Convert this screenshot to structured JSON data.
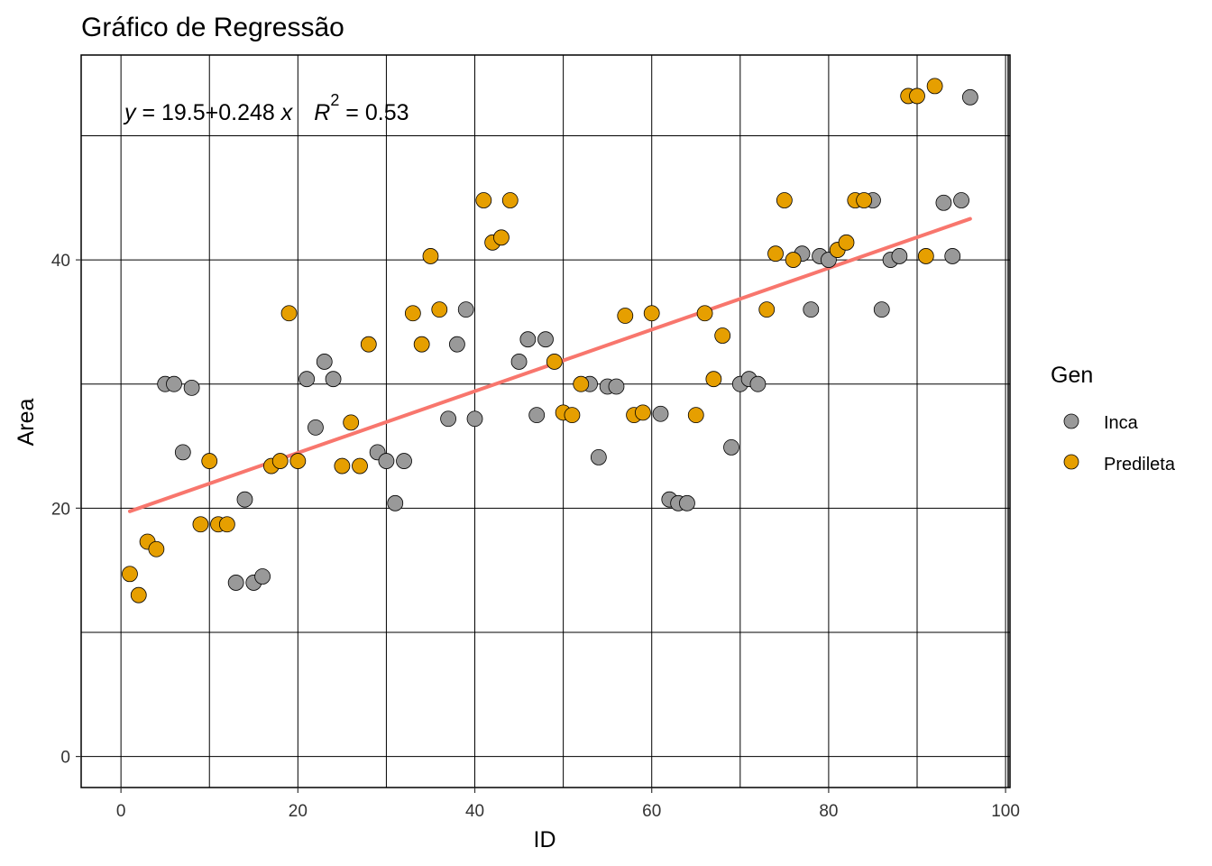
{
  "chart_data": {
    "type": "scatter",
    "title": "Gráfico de Regressão",
    "xlabel": "ID",
    "ylabel": "Area",
    "xlim": [
      -4.5,
      100.5
    ],
    "ylim": [
      -2.5,
      56.5
    ],
    "x_ticks": [
      0,
      20,
      40,
      60,
      80,
      100
    ],
    "y_ticks": [
      0,
      20,
      40
    ],
    "x_tick_labels": [
      "0",
      "20",
      "40",
      "60",
      "80",
      "100"
    ],
    "y_tick_labels": [
      "0",
      "20",
      "40"
    ],
    "grid": true,
    "legend": {
      "title": "Gen",
      "position": "right",
      "entries": [
        {
          "label": "Inca",
          "color": "#999999"
        },
        {
          "label": "Predileta",
          "color": "#E69F00"
        }
      ]
    },
    "regression": {
      "intercept": 19.5,
      "slope": 0.248,
      "x_range": [
        1,
        96
      ],
      "color": "#F8766D",
      "equation": {
        "y": "y",
        "eq1": " = 19.5",
        "plus": "+",
        "coef": "0.248 ",
        "x": "x",
        "R": "R",
        "sup": "2",
        "eq2": " = 0.53"
      }
    },
    "series": [
      {
        "name": "Inca",
        "color": "#999999",
        "points": [
          [
            5,
            30
          ],
          [
            6,
            30
          ],
          [
            7,
            24.5
          ],
          [
            8,
            29.7
          ],
          [
            13,
            14
          ],
          [
            14,
            20.7
          ],
          [
            15,
            14
          ],
          [
            16,
            14.5
          ],
          [
            21,
            30.4
          ],
          [
            22,
            26.5
          ],
          [
            23,
            31.8
          ],
          [
            24,
            30.4
          ],
          [
            29,
            24.5
          ],
          [
            30,
            23.8
          ],
          [
            31,
            20.4
          ],
          [
            32,
            23.8
          ],
          [
            37,
            27.2
          ],
          [
            38,
            33.2
          ],
          [
            39,
            36
          ],
          [
            40,
            27.2
          ],
          [
            45,
            31.8
          ],
          [
            46,
            33.6
          ],
          [
            47,
            27.5
          ],
          [
            48,
            33.6
          ],
          [
            53,
            30
          ],
          [
            54,
            24.1
          ],
          [
            55,
            29.8
          ],
          [
            56,
            29.8
          ],
          [
            61,
            27.6
          ],
          [
            62,
            20.7
          ],
          [
            63,
            20.4
          ],
          [
            64,
            20.4
          ],
          [
            69,
            24.9
          ],
          [
            70,
            30
          ],
          [
            71,
            30.4
          ],
          [
            72,
            30
          ],
          [
            77,
            40.5
          ],
          [
            78,
            36
          ],
          [
            79,
            40.3
          ],
          [
            80,
            40
          ],
          [
            85,
            44.8
          ],
          [
            86,
            36
          ],
          [
            87,
            40
          ],
          [
            88,
            40.3
          ],
          [
            93,
            44.6
          ],
          [
            94,
            40.3
          ],
          [
            95,
            44.8
          ],
          [
            96,
            53.1
          ]
        ]
      },
      {
        "name": "Predileta",
        "color": "#E69F00",
        "points": [
          [
            1,
            14.7
          ],
          [
            2,
            13
          ],
          [
            3,
            17.3
          ],
          [
            4,
            16.7
          ],
          [
            9,
            18.7
          ],
          [
            10,
            23.8
          ],
          [
            11,
            18.7
          ],
          [
            12,
            18.7
          ],
          [
            17,
            23.4
          ],
          [
            18,
            23.8
          ],
          [
            19,
            35.7
          ],
          [
            20,
            23.8
          ],
          [
            25,
            23.4
          ],
          [
            26,
            26.9
          ],
          [
            27,
            23.4
          ],
          [
            28,
            33.2
          ],
          [
            33,
            35.7
          ],
          [
            34,
            33.2
          ],
          [
            35,
            40.3
          ],
          [
            36,
            36
          ],
          [
            41,
            44.8
          ],
          [
            42,
            41.4
          ],
          [
            43,
            41.8
          ],
          [
            44,
            44.8
          ],
          [
            49,
            31.8
          ],
          [
            50,
            27.7
          ],
          [
            51,
            27.5
          ],
          [
            52,
            30
          ],
          [
            57,
            35.5
          ],
          [
            58,
            27.5
          ],
          [
            59,
            27.7
          ],
          [
            60,
            35.7
          ],
          [
            65,
            27.5
          ],
          [
            66,
            35.7
          ],
          [
            67,
            30.4
          ],
          [
            68,
            33.9
          ],
          [
            73,
            36
          ],
          [
            74,
            40.5
          ],
          [
            75,
            44.8
          ],
          [
            76,
            40
          ],
          [
            81,
            40.8
          ],
          [
            82,
            41.4
          ],
          [
            83,
            44.8
          ],
          [
            84,
            44.8
          ],
          [
            89,
            53.2
          ],
          [
            90,
            53.2
          ],
          [
            91,
            40.3
          ],
          [
            92,
            54
          ]
        ]
      }
    ]
  }
}
